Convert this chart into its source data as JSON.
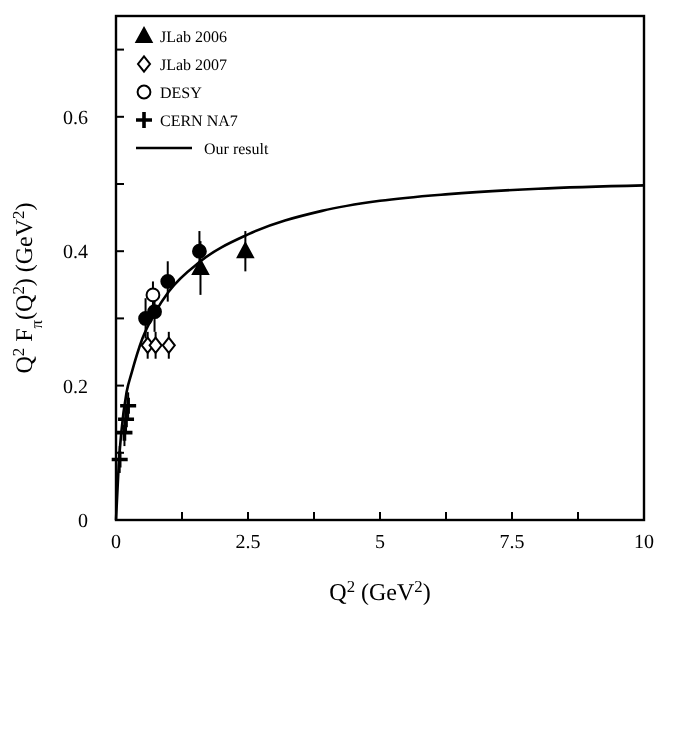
{
  "chart_data": {
    "type": "scatter",
    "xlabel": "Q$^{2}$ (GeV$^{2}$)",
    "ylabel": "Q$^{2}$ F$_{π}$(Q$^{2}$)    (GeV$^{2}$)",
    "xlim": [
      0,
      10
    ],
    "xticks": [
      0,
      {
        "value": 1.25,
        "label": null
      },
      2.5,
      {
        "value": 3.75,
        "label": null
      },
      5,
      {
        "value": 6.25,
        "label": null
      },
      7.5,
      {
        "value": 8.75,
        "label": null
      },
      10
    ],
    "ylim": [
      0,
      0.75
    ],
    "yticks": [
      0,
      {
        "value": 0.1,
        "label": null
      },
      0.2,
      {
        "value": 0.3,
        "label": null
      },
      0.4,
      {
        "value": 0.5,
        "label": null
      },
      0.6,
      {
        "value": 0.7,
        "label": null
      }
    ],
    "legend": "top left",
    "grid": false,
    "series": [
      {
        "color": "#000000",
        "marker": "circle",
        "x": [
          0.56,
          0.73,
          0.98,
          1.58
        ],
        "values": [
          0.3,
          0.31,
          0.355,
          0.4
        ],
        "errors": [
          0.03,
          0.03,
          0.03,
          0.03
        ]
      },
      {
        "name": "JLab 2006",
        "color": "#000000",
        "marker": "triangle",
        "x": [
          1.6,
          2.45
        ],
        "values": [
          0.375,
          0.4
        ],
        "errors": [
          0.04,
          0.03
        ]
      },
      {
        "name": "JLab 2007",
        "color": "#ffffff",
        "marker": "diamond",
        "x": [
          0.6,
          0.75,
          1.0
        ],
        "values": [
          0.26,
          0.26,
          0.26
        ],
        "errors": [
          0.02,
          0.02,
          0.02
        ]
      },
      {
        "name": "DESY",
        "color": "#ffffff",
        "marker": "circle",
        "x": [
          0.7
        ],
        "values": [
          0.335
        ],
        "errors": [
          0.02
        ]
      },
      {
        "name": "CERN NA7",
        "color": "#000000",
        "marker": "cross",
        "x": [
          0.07,
          0.16,
          0.19,
          0.23
        ],
        "values": [
          0.09,
          0.13,
          0.15,
          0.17
        ],
        "errors": [
          0.02,
          0.02,
          0.02,
          0.02
        ]
      },
      {
        "name": "Our result",
        "type": "line",
        "color": "#000000",
        "marker": "none",
        "x": [
          0,
          0.05,
          0.1,
          0.2,
          0.3,
          0.5,
          0.75,
          1,
          1.6,
          2.5,
          3.9,
          5,
          6.3,
          8,
          10
        ],
        "values": [
          0,
          0.08,
          0.13,
          0.19,
          0.22,
          0.27,
          0.31,
          0.34,
          0.385,
          0.425,
          0.46,
          0.475,
          0.485,
          0.493,
          0.498
        ]
      }
    ]
  }
}
